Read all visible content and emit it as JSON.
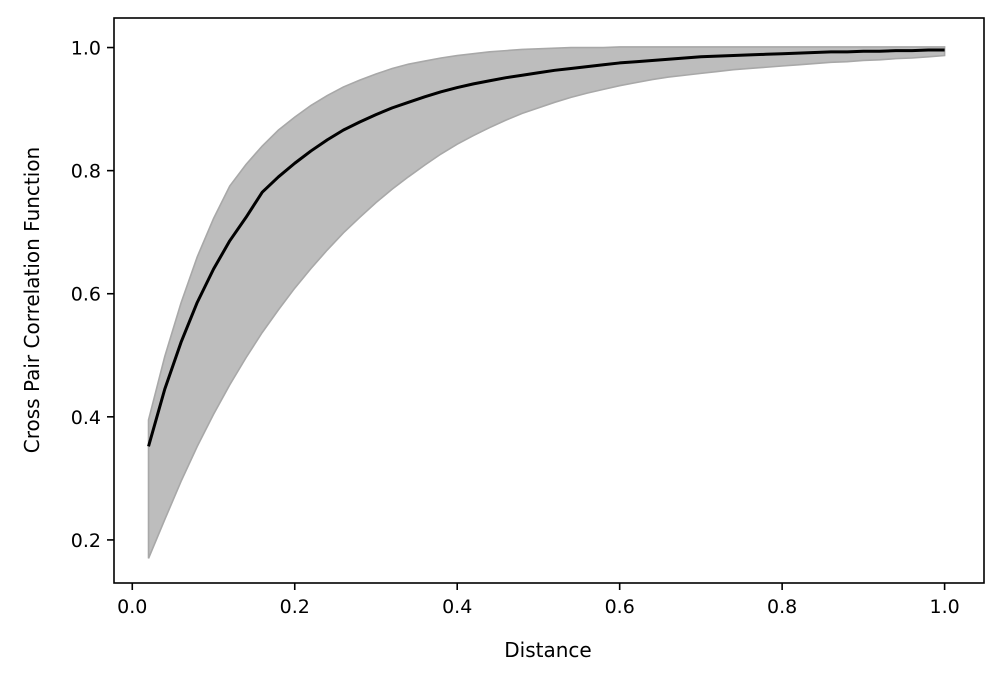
{
  "chart_data": {
    "type": "line",
    "title": "",
    "xlabel": "Distance",
    "ylabel": "Cross Pair Correlation Function",
    "xlim": [
      -0.0225,
      1.0485
    ],
    "ylim": [
      0.13,
      1.048
    ],
    "xticks": [
      0.0,
      0.2,
      0.4,
      0.6,
      0.8,
      1.0
    ],
    "xtick_labels": [
      "0.0",
      "0.2",
      "0.4",
      "0.6",
      "0.8",
      "1.0"
    ],
    "yticks": [
      0.2,
      0.4,
      0.6,
      0.8,
      1.0
    ],
    "ytick_labels": [
      "0.2",
      "0.4",
      "0.6",
      "0.8",
      "1.0"
    ],
    "grid": false,
    "legend": "none",
    "colors": {
      "line": "#000000",
      "band_fill": "#bdbdbd",
      "band_edge": "#a8a8a8"
    },
    "x": [
      0.02,
      0.04,
      0.06,
      0.08,
      0.1,
      0.12,
      0.14,
      0.16,
      0.18,
      0.2,
      0.22,
      0.24,
      0.26,
      0.28,
      0.3,
      0.32,
      0.34,
      0.36,
      0.38,
      0.4,
      0.42,
      0.44,
      0.46,
      0.48,
      0.5,
      0.52,
      0.54,
      0.56,
      0.58,
      0.6,
      0.62,
      0.64,
      0.66,
      0.68,
      0.7,
      0.72,
      0.74,
      0.76,
      0.78,
      0.8,
      0.82,
      0.84,
      0.86,
      0.88,
      0.9,
      0.92,
      0.94,
      0.96,
      0.98,
      1.0
    ],
    "series": [
      {
        "role": "mean",
        "values": [
          0.352,
          0.445,
          0.521,
          0.586,
          0.64,
          0.686,
          0.724,
          0.765,
          0.79,
          0.812,
          0.832,
          0.85,
          0.866,
          0.879,
          0.891,
          0.902,
          0.911,
          0.92,
          0.928,
          0.935,
          0.941,
          0.946,
          0.951,
          0.955,
          0.959,
          0.963,
          0.966,
          0.969,
          0.972,
          0.975,
          0.977,
          0.979,
          0.981,
          0.983,
          0.985,
          0.986,
          0.987,
          0.988,
          0.989,
          0.99,
          0.991,
          0.992,
          0.993,
          0.993,
          0.994,
          0.994,
          0.995,
          0.995,
          0.996,
          0.996
        ]
      },
      {
        "role": "upper-band",
        "values": [
          0.395,
          0.498,
          0.585,
          0.66,
          0.722,
          0.775,
          0.81,
          0.84,
          0.866,
          0.887,
          0.906,
          0.922,
          0.936,
          0.947,
          0.957,
          0.966,
          0.973,
          0.978,
          0.983,
          0.987,
          0.99,
          0.993,
          0.995,
          0.997,
          0.998,
          0.999,
          1.0,
          1.0,
          1.0,
          1.001,
          1.001,
          1.001,
          1.001,
          1.001,
          1.001,
          1.001,
          1.001,
          1.001,
          1.001,
          1.001,
          1.001,
          1.001,
          1.001,
          1.001,
          1.001,
          1.001,
          1.001,
          1.001,
          1.001,
          1.001
        ]
      },
      {
        "role": "lower-band",
        "values": [
          0.17,
          0.233,
          0.295,
          0.352,
          0.404,
          0.452,
          0.496,
          0.537,
          0.574,
          0.609,
          0.641,
          0.671,
          0.699,
          0.724,
          0.748,
          0.77,
          0.79,
          0.809,
          0.827,
          0.843,
          0.857,
          0.87,
          0.882,
          0.893,
          0.902,
          0.911,
          0.919,
          0.926,
          0.932,
          0.938,
          0.943,
          0.948,
          0.952,
          0.955,
          0.958,
          0.961,
          0.964,
          0.966,
          0.968,
          0.97,
          0.972,
          0.974,
          0.976,
          0.977,
          0.979,
          0.98,
          0.982,
          0.983,
          0.985,
          0.987
        ]
      }
    ]
  }
}
